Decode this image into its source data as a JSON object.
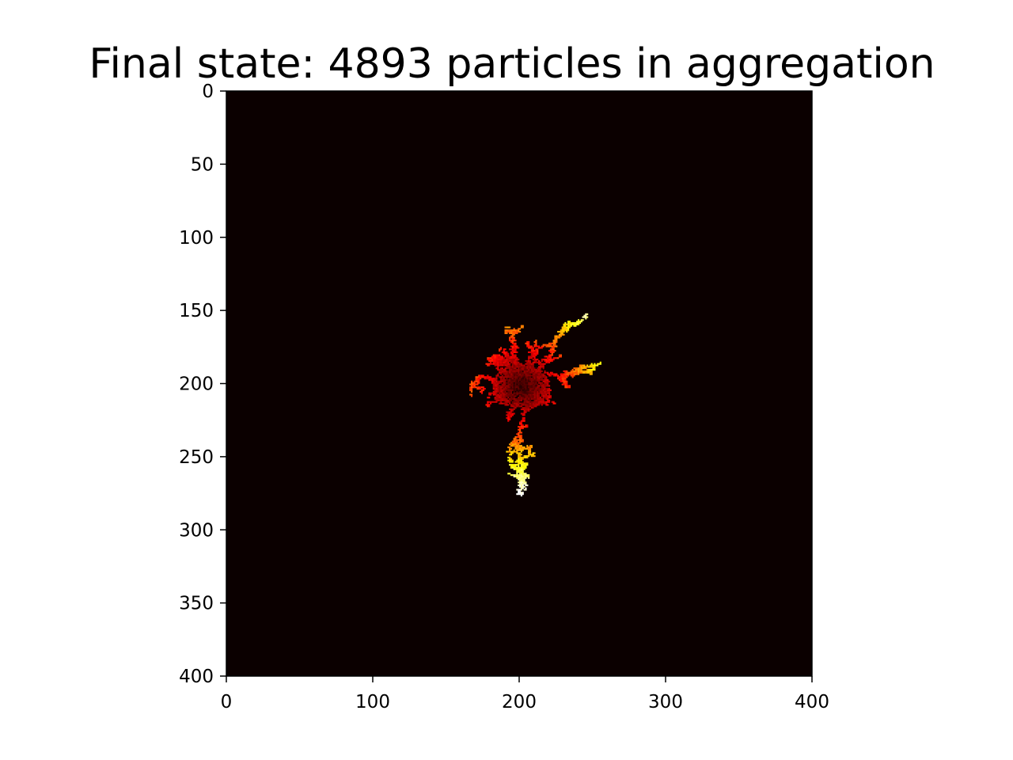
{
  "chart_data": {
    "type": "heatmap",
    "title": "Final state: 4893 particles in aggregation",
    "xlabel": "",
    "ylabel": "",
    "xlim": [
      0,
      400
    ],
    "ylim": [
      400,
      0
    ],
    "y_axis_inverted": true,
    "grid": false,
    "colormap": "hot",
    "background_color": "#0b0000",
    "particle_count": 4893,
    "seed_point": [
      201,
      201
    ],
    "x_ticks": [
      0,
      100,
      200,
      300,
      400
    ],
    "y_ticks": [
      0,
      50,
      100,
      150,
      200,
      250,
      300,
      350,
      400
    ],
    "tick_labels_x": [
      "0",
      "100",
      "200",
      "300",
      "400"
    ],
    "tick_labels_y": [
      "0",
      "50",
      "100",
      "150",
      "200",
      "250",
      "300",
      "350",
      "400"
    ],
    "cluster_extent": {
      "x_range": [
        166,
        256
      ],
      "y_range": [
        152,
        277
      ]
    },
    "branch_tips": [
      {
        "x": 245,
        "y": 153
      },
      {
        "x": 192,
        "y": 162
      },
      {
        "x": 170,
        "y": 198
      },
      {
        "x": 254,
        "y": 186
      },
      {
        "x": 178,
        "y": 215
      },
      {
        "x": 200,
        "y": 276
      },
      {
        "x": 211,
        "y": 172
      }
    ]
  }
}
